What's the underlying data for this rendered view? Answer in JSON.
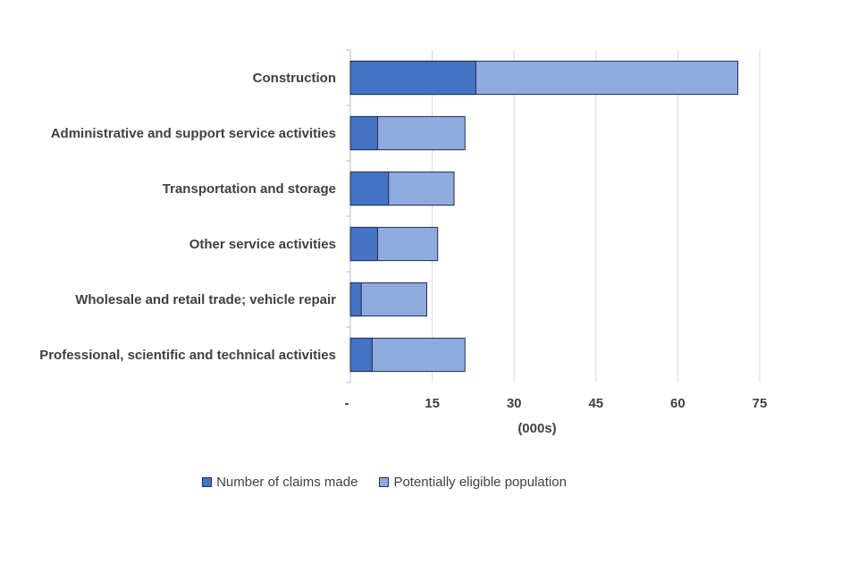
{
  "chart_data": {
    "type": "bar",
    "orientation": "horizontal",
    "layout": "overlaid",
    "categories": [
      "Construction",
      "Administrative and support service activities",
      "Transportation and storage",
      "Other service activities",
      "Wholesale and retail trade; vehicle repair",
      "Professional, scientific and technical activities"
    ],
    "series": [
      {
        "name": "Potentially eligible population",
        "values": [
          71,
          21,
          19,
          16,
          14,
          21
        ],
        "color": "#8faadc"
      },
      {
        "name": "Number of claims made",
        "values": [
          23,
          5,
          7,
          5,
          2,
          4
        ],
        "color": "#4472c4"
      }
    ],
    "xlim": [
      0,
      75
    ],
    "xticks": [
      0,
      15,
      30,
      45,
      60,
      75
    ],
    "xtick_labels": [
      "-",
      "15",
      "30",
      "45",
      "60",
      "75"
    ],
    "xlabel": "(000s)",
    "ylabel": "",
    "title": "",
    "grid": true,
    "legend": {
      "position": "bottom",
      "items": [
        {
          "label": "Number of claims made",
          "color": "#4472c4"
        },
        {
          "label": "Potentially eligible population",
          "color": "#8faadc"
        }
      ]
    }
  }
}
